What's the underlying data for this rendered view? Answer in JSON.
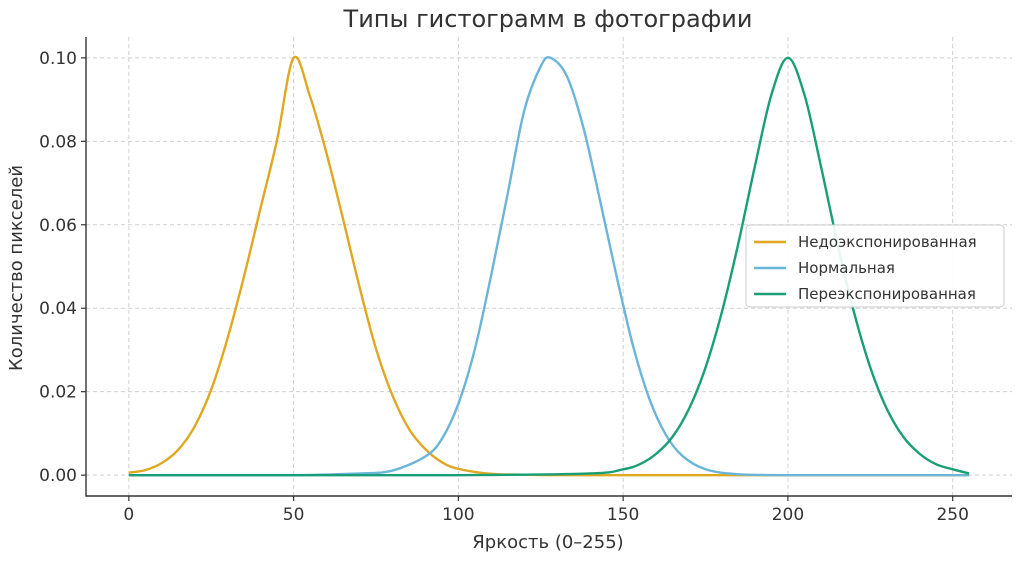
{
  "chart_data": {
    "type": "line",
    "title": "Типы гистограмм в фотографии",
    "xlabel": "Яркость (0–255)",
    "ylabel": "Количество пикселей",
    "xlim": [
      -13,
      268
    ],
    "ylim": [
      -0.005,
      0.105
    ],
    "xticks": [
      0,
      50,
      100,
      150,
      200,
      250
    ],
    "yticks": [
      0.0,
      0.02,
      0.04,
      0.06,
      0.08,
      0.1
    ],
    "xtick_labels": [
      "0",
      "50",
      "100",
      "150",
      "200",
      "250"
    ],
    "ytick_labels": [
      "0.00",
      "0.02",
      "0.04",
      "0.06",
      "0.08",
      "0.10"
    ],
    "grid": true,
    "legend_position": "right",
    "series": [
      {
        "name": "Недоэкспонированная",
        "color": "#E0A822",
        "x": [
          0,
          5,
          10,
          15,
          20,
          25,
          30,
          35,
          40,
          45,
          50,
          55,
          60,
          65,
          70,
          75,
          80,
          85,
          90,
          95,
          100,
          110,
          120,
          130,
          140,
          150,
          160,
          180,
          200,
          220,
          255
        ],
        "y": [
          0.0006,
          0.0012,
          0.0029,
          0.0061,
          0.0117,
          0.0205,
          0.0329,
          0.0478,
          0.0641,
          0.0804,
          0.1,
          0.0907,
          0.0771,
          0.0614,
          0.0451,
          0.0303,
          0.0191,
          0.0111,
          0.0062,
          0.0031,
          0.0015,
          0.0003,
          0.0001,
          0.0,
          0.0,
          0.0,
          0.0,
          0.0,
          0.0,
          0.0,
          0.0
        ]
      },
      {
        "name": "Нормальная",
        "color": "#6BB5D9",
        "x": [
          0,
          50,
          70,
          80,
          90,
          95,
          100,
          105,
          110,
          115,
          120,
          125,
          128,
          133,
          138,
          143,
          148,
          153,
          158,
          163,
          168,
          175,
          185,
          200,
          220,
          255
        ],
        "y": [
          0.0,
          0.0,
          0.0004,
          0.0011,
          0.0045,
          0.0087,
          0.0171,
          0.0302,
          0.0481,
          0.0676,
          0.0874,
          0.098,
          0.1,
          0.0955,
          0.0831,
          0.0658,
          0.0477,
          0.031,
          0.0182,
          0.0096,
          0.0046,
          0.0014,
          0.0002,
          0.0,
          0.0,
          0.0
        ]
      },
      {
        "name": "Переэкспонированная",
        "color": "#1A9E77",
        "x": [
          0,
          100,
          140,
          150,
          155,
          160,
          165,
          170,
          175,
          180,
          185,
          190,
          195,
          200,
          205,
          210,
          215,
          220,
          225,
          230,
          235,
          240,
          245,
          250,
          255
        ],
        "y": [
          0.0,
          0.0,
          0.0004,
          0.0014,
          0.0026,
          0.0051,
          0.0092,
          0.0159,
          0.0258,
          0.0392,
          0.0557,
          0.0741,
          0.0912,
          0.1,
          0.0912,
          0.0741,
          0.0557,
          0.0392,
          0.0258,
          0.0159,
          0.0092,
          0.0051,
          0.0026,
          0.0014,
          0.0004
        ]
      }
    ]
  }
}
